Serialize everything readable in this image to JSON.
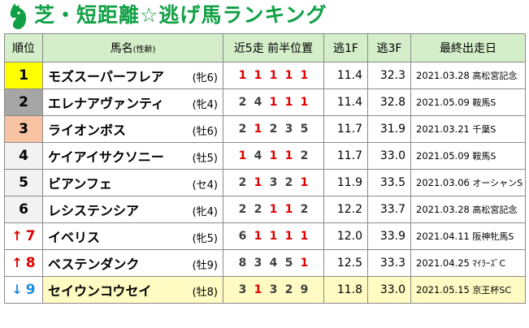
{
  "title": "芝・短距離☆逃げ馬ランキング",
  "headers": {
    "rank": "順位",
    "name": "馬名",
    "name_sub": "(性齢)",
    "positions": "近5走 前半位置",
    "f1": "逃1F",
    "f3": "逃3F",
    "last": "最終出走日"
  },
  "rows": [
    {
      "rank": "1",
      "arrow": "",
      "horse": "モズスーパーフレア",
      "sa": "(牝6)",
      "pos": [
        "1",
        "1",
        "1",
        "1",
        "1"
      ],
      "f1": "11.4",
      "f3": "32.3",
      "date": "2021.03.28",
      "race": "高松宮記念"
    },
    {
      "rank": "2",
      "arrow": "",
      "horse": "エレナアヴァンティ",
      "sa": "(牝4)",
      "pos": [
        "2",
        "4",
        "1",
        "1",
        "1"
      ],
      "f1": "11.4",
      "f3": "32.8",
      "date": "2021.05.09",
      "race": "鞍馬S"
    },
    {
      "rank": "3",
      "arrow": "",
      "horse": "ライオンボス",
      "sa": "(牡6)",
      "pos": [
        "2",
        "1",
        "2",
        "3",
        "5"
      ],
      "f1": "11.7",
      "f3": "31.9",
      "date": "2021.03.21",
      "race": "千葉S"
    },
    {
      "rank": "4",
      "arrow": "",
      "horse": "ケイアイサクソニー",
      "sa": "(牡5)",
      "pos": [
        "1",
        "4",
        "1",
        "1",
        "2"
      ],
      "f1": "11.7",
      "f3": "33.0",
      "date": "2021.05.09",
      "race": "鞍馬S"
    },
    {
      "rank": "5",
      "arrow": "",
      "horse": "ビアンフェ",
      "sa": "(セ4)",
      "pos": [
        "2",
        "1",
        "3",
        "2",
        "1"
      ],
      "f1": "11.9",
      "f3": "33.5",
      "date": "2021.03.06",
      "race": "オーシャンS"
    },
    {
      "rank": "6",
      "arrow": "",
      "horse": "レシステンシア",
      "sa": "(牝4)",
      "pos": [
        "2",
        "2",
        "1",
        "1",
        "2"
      ],
      "f1": "12.2",
      "f3": "33.7",
      "date": "2021.03.28",
      "race": "高松宮記念"
    },
    {
      "rank": "7",
      "arrow": "↑",
      "horse": "イベリス",
      "sa": "(牝5)",
      "pos": [
        "6",
        "1",
        "1",
        "1",
        "1"
      ],
      "f1": "12.0",
      "f3": "33.9",
      "date": "2021.04.11",
      "race": "阪神牝馬S"
    },
    {
      "rank": "8",
      "arrow": "↑",
      "horse": "ベステンダンク",
      "sa": "(牡9)",
      "pos": [
        "8",
        "3",
        "4",
        "5",
        "1"
      ],
      "f1": "12.5",
      "f3": "33.3",
      "date": "2021.04.25",
      "race": "ﾏｲﾗｰｽﾞC"
    },
    {
      "rank": "9",
      "arrow": "↓",
      "horse": "セイウンコウセイ",
      "sa": "(牡8)",
      "pos": [
        "3",
        "1",
        "3",
        "2",
        "9"
      ],
      "f1": "11.8",
      "f3": "33.0",
      "date": "2021.05.15",
      "race": "京王杯SC"
    }
  ],
  "rank_colors": [
    "#ffff00",
    "#a6a6a6",
    "#f8c3a3",
    "#f2f2f2",
    "#f2f2f2",
    "#f2f2f2",
    "#ffffff",
    "#ffffff",
    "#ffffff"
  ],
  "title_icon": "horse-head-icon"
}
